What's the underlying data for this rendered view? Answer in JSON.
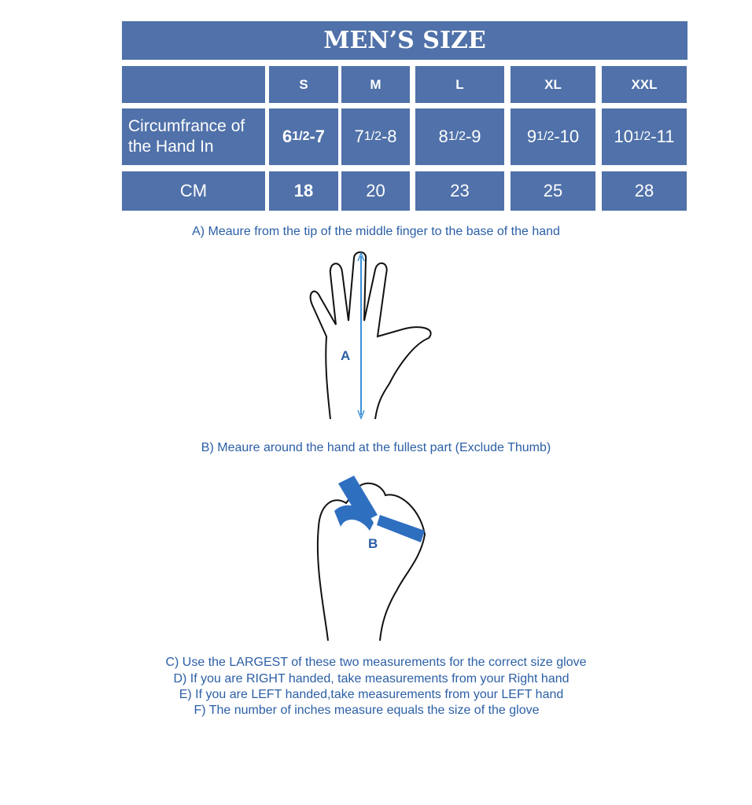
{
  "title": "MEN’S SIZE",
  "sizes": [
    "S",
    "M",
    "L",
    "XL",
    "XXL"
  ],
  "row_inches": {
    "label": "Circumfrance of the Hand In",
    "label_line1": "Circumfrance of",
    "label_line2": "the Hand In",
    "values": [
      {
        "a": "6 ",
        "f": "1/2",
        "b": "-7"
      },
      {
        "a": "7",
        "f": "1/2",
        "b": "-8"
      },
      {
        "a": "8",
        "f": "1/2",
        "b": " -9"
      },
      {
        "a": "9",
        "f": "1/2",
        "b": " -10"
      },
      {
        "a": "10",
        "f": "1/2",
        "b": "-11"
      }
    ]
  },
  "row_cm": {
    "label": "CM",
    "values": [
      "18",
      "20",
      "23",
      "25",
      "28"
    ]
  },
  "instructions": {
    "a": "A) Meaure from the tip of the middle finger to the base of the hand",
    "a_marker": "A",
    "b": "B) Meaure around the hand at the fullest part (Exclude Thumb)",
    "b_marker": "B",
    "c": "C) Use the LARGEST of these two measurements for the correct size glove",
    "d": "D) If you are RIGHT handed, take measurements from your Right hand",
    "e": "E) If you are LEFT handed,take measurements from your LEFT hand",
    "f": "F) The number of inches measure equals the size of the glove"
  },
  "colors": {
    "table": "#5071a9",
    "text": "#2b5fa6",
    "tape": "#2f6fc0"
  }
}
